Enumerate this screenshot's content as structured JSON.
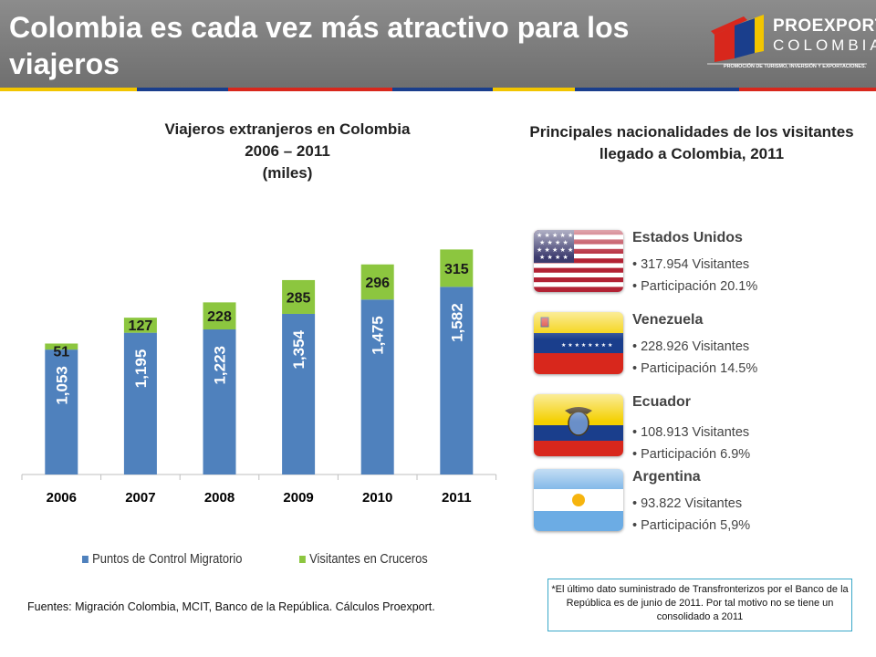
{
  "header": {
    "title": "Colombia es cada vez más atractivo para los viajeros",
    "logo_line1": "PROEXPORT",
    "logo_line2": "COLOMBIA",
    "logo_tagline": "PROMOCIÓN DE TURISMO, INVERSIÓN Y EXPORTACIONES."
  },
  "colors": {
    "stripe": [
      "#f2c500",
      "#1a3e8c",
      "#d8271c",
      "#1a3e8c",
      "#f2c500",
      "#1a3e8c",
      "#d8271c"
    ],
    "control": "#4f81bd",
    "cruise": "#8cc63f"
  },
  "chart_data": {
    "type": "bar",
    "stacked": true,
    "title_lines": [
      "Viajeros extranjeros en Colombia",
      "2006 – 2011",
      "(miles)"
    ],
    "categories": [
      "2006",
      "2007",
      "2008",
      "2009",
      "2010",
      "2011"
    ],
    "series": [
      {
        "name": "Puntos de Control Migratorio",
        "values": [
          1053,
          1195,
          1223,
          1354,
          1475,
          1582
        ],
        "labels": [
          "1,053",
          "1,195",
          "1,223",
          "1,354",
          "1,475",
          "1,582"
        ]
      },
      {
        "name": "Visitantes en Cruceros",
        "values": [
          51,
          127,
          228,
          285,
          296,
          315
        ],
        "labels": [
          "51",
          "127",
          "228",
          "285",
          "296",
          "315"
        ]
      }
    ],
    "ylim": [
      0,
      2000
    ],
    "legend_position": "bottom",
    "grid": false
  },
  "sources": "Fuentes: Migración Colombia, MCIT, Banco de la República. Cálculos Proexport.",
  "nationalities": {
    "title": "Principales nacionalidades de los visitantes llegado a Colombia, 2011",
    "items": [
      {
        "name": "Estados Unidos",
        "visitors": "• 317.954 Visitantes",
        "share": "• Participación 20.1%",
        "icon": "usa-flag-icon"
      },
      {
        "name": "Venezuela",
        "visitors": "• 228.926 Visitantes",
        "share": "• Participación 14.5%",
        "icon": "venezuela-flag-icon"
      },
      {
        "name": "Ecuador",
        "visitors": "• 108.913 Visitantes",
        "share": "• Participación  6.9%",
        "icon": "ecuador-flag-icon"
      },
      {
        "name": "Argentina",
        "visitors": "• 93.822 Visitantes",
        "share": "• Participación 5,9%",
        "icon": "argentina-flag-icon"
      }
    ]
  },
  "note": "*El último dato suministrado de Transfronterizos por el Banco de la República es de junio de 2011. Por tal motivo no se tiene un consolidado a 2011"
}
